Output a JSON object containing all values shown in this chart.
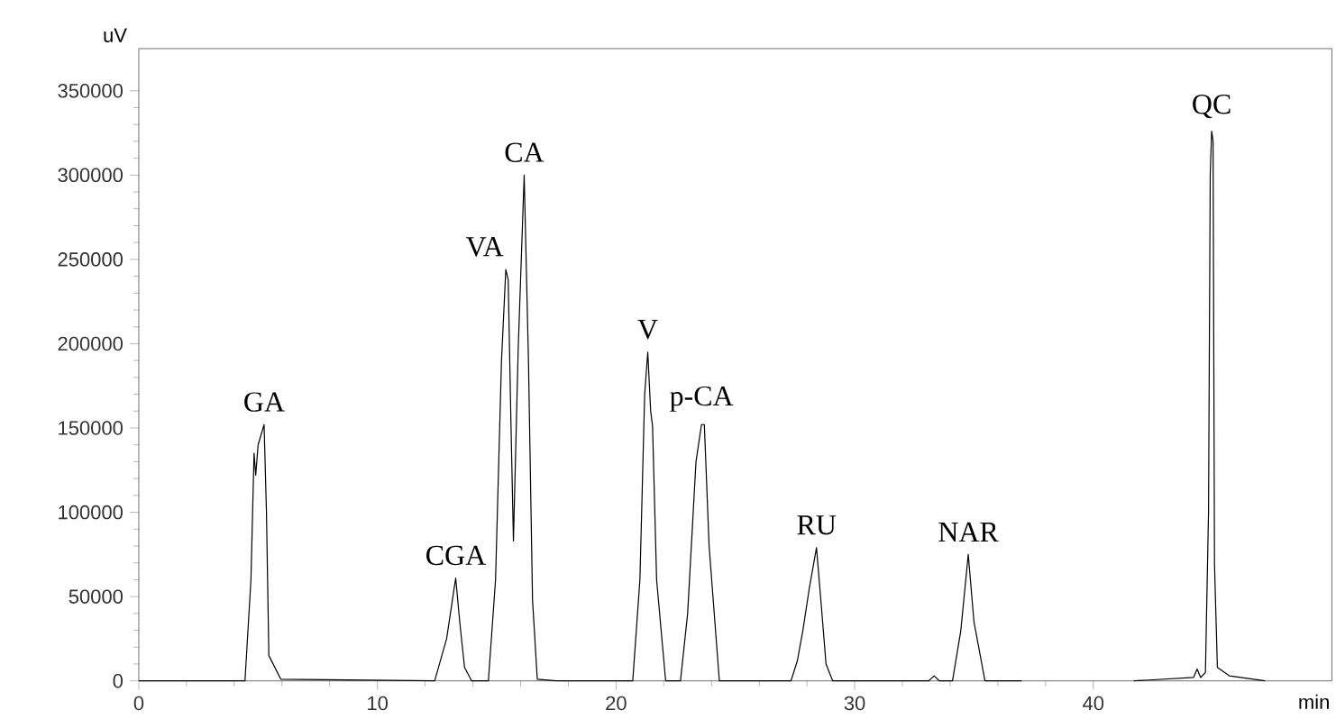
{
  "chart_data": {
    "type": "line",
    "xlabel": "min",
    "ylabel": "uV",
    "color": "#000000",
    "x": [
      0,
      3,
      4.45,
      4.7,
      4.83,
      4.9,
      5.0,
      5.25,
      5.35,
      5.45,
      5.95,
      12.4,
      12.9,
      13.28,
      13.45,
      13.65,
      13.95,
      14.65,
      14.95,
      15.2,
      15.38,
      15.48,
      15.6,
      15.7,
      15.9,
      16.15,
      16.33,
      16.5,
      16.7,
      17.5,
      20.7,
      21.0,
      21.2,
      21.33,
      21.45,
      21.53,
      21.7,
      22.08,
      22.7,
      23.0,
      23.35,
      23.58,
      23.7,
      23.9,
      24.33,
      27.33,
      27.6,
      27.83,
      28.1,
      28.4,
      28.6,
      28.8,
      29.08,
      33.1,
      33.33,
      33.55,
      34.1,
      34.45,
      34.76,
      35.0,
      35.46,
      37.0,
      39.0,
      41.7,
      44.2,
      44.35,
      44.5,
      44.7,
      44.83,
      44.9,
      44.96,
      45.02,
      45.08,
      45.2,
      45.7,
      47.2
    ],
    "values": [
      0,
      0,
      0,
      60000,
      135000,
      122000,
      140000,
      152000,
      100000,
      15000,
      1000,
      0,
      25000,
      61000,
      35000,
      8000,
      0,
      0,
      60000,
      190000,
      244000,
      238000,
      150000,
      83000,
      197000,
      300000,
      190000,
      48000,
      1000,
      0,
      0,
      60000,
      170000,
      195000,
      160000,
      151000,
      60000,
      0,
      0,
      40000,
      130000,
      152000,
      152000,
      80000,
      0,
      0,
      12000,
      30000,
      55000,
      79000,
      45000,
      10000,
      0,
      0,
      3000,
      0,
      0,
      30000,
      75000,
      35000,
      0,
      0,
      null,
      0,
      2000,
      7000,
      2000,
      5000,
      101000,
      300000,
      326000,
      320000,
      69000,
      8000,
      3000,
      0
    ],
    "xlim": [
      0,
      50
    ],
    "ylim": [
      0,
      375000
    ],
    "xticks": [
      0,
      10,
      20,
      30,
      40
    ],
    "yticks": [
      0,
      50000,
      100000,
      150000,
      200000,
      250000,
      300000,
      350000
    ],
    "annotations": [
      {
        "text": "GA",
        "x": 5.25,
        "y": 152000
      },
      {
        "text": "CGA",
        "x": 13.28,
        "y": 61000
      },
      {
        "text": "VA",
        "x": 15.38,
        "y": 244000
      },
      {
        "text": "CA",
        "x": 16.15,
        "y": 300000
      },
      {
        "text": "V",
        "x": 21.33,
        "y": 195000
      },
      {
        "text": "p-CA",
        "x": 23.58,
        "y": 152000
      },
      {
        "text": "RU",
        "x": 28.4,
        "y": 79000
      },
      {
        "text": "NAR",
        "x": 34.76,
        "y": 75000
      },
      {
        "text": "QC",
        "x": 44.96,
        "y": 326000
      }
    ]
  }
}
